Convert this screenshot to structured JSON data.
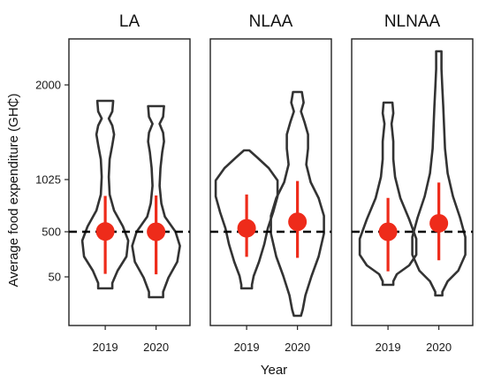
{
  "chart_data": {
    "type": "violin",
    "xlabel": "Year",
    "ylabel": "Average food expenditure (GH₵)",
    "x_categories": [
      "2019",
      "2020"
    ],
    "y_ticks": [
      50,
      500,
      1025,
      2000
    ],
    "reference_line": 500,
    "colors": {
      "violin": "#333333",
      "point": "#ee2b1a",
      "reference": "#000000"
    },
    "panels": [
      {
        "title": "LA",
        "groups": [
          {
            "year": "2019",
            "mean": 503,
            "ci_low": 80,
            "ci_high": 860
          },
          {
            "year": "2020",
            "mean": 500,
            "ci_low": 75,
            "ci_high": 865
          }
        ]
      },
      {
        "title": "NLAA",
        "groups": [
          {
            "year": "2019",
            "mean": 535,
            "ci_low": 250,
            "ci_high": 875
          },
          {
            "year": "2020",
            "mean": 600,
            "ci_low": 240,
            "ci_high": 1010
          }
        ]
      },
      {
        "title": "NLNAA",
        "groups": [
          {
            "year": "2019",
            "mean": 500,
            "ci_low": 105,
            "ci_high": 840
          },
          {
            "year": "2020",
            "mean": 585,
            "ci_low": 215,
            "ci_high": 995
          }
        ]
      }
    ]
  }
}
